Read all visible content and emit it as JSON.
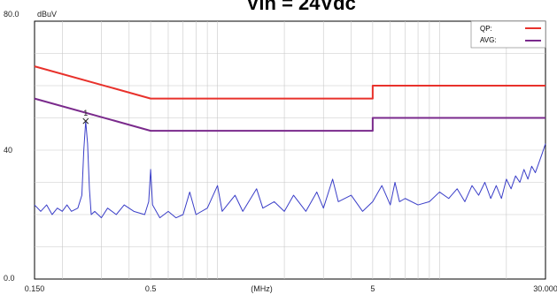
{
  "chart_data": {
    "type": "line",
    "title": "Vin = 24Vdc",
    "xlabel": "(MHz)",
    "ylabel": "dBuV",
    "x_scale": "log",
    "xlim": [
      0.15,
      30
    ],
    "ylim": [
      0,
      80
    ],
    "x_tick_labels": [
      {
        "value": 0.15,
        "label": "0.150"
      },
      {
        "value": 0.5,
        "label": "0.5"
      },
      {
        "value": 5,
        "label": "5"
      },
      {
        "value": 30,
        "label": "30.000"
      }
    ],
    "y_tick_labels": [
      {
        "value": 80,
        "label": "80.0"
      },
      {
        "value": 40,
        "label": "40"
      },
      {
        "value": 0,
        "label": "0.0"
      }
    ],
    "grid": true,
    "legend_position": "top-right",
    "series": [
      {
        "name": "QP:",
        "color": "#e8312b",
        "points": [
          [
            0.15,
            66
          ],
          [
            0.5,
            56
          ],
          [
            5,
            56
          ],
          [
            5,
            60
          ],
          [
            30,
            60
          ]
        ]
      },
      {
        "name": "AVG:",
        "color": "#7a2a8c",
        "points": [
          [
            0.15,
            56
          ],
          [
            0.5,
            46
          ],
          [
            5,
            46
          ],
          [
            5,
            50
          ],
          [
            30,
            50
          ]
        ]
      },
      {
        "color": "#3a3ec8",
        "points": [
          [
            0.15,
            23
          ],
          [
            0.16,
            21
          ],
          [
            0.17,
            23
          ],
          [
            0.18,
            20
          ],
          [
            0.19,
            22
          ],
          [
            0.2,
            21
          ],
          [
            0.21,
            23
          ],
          [
            0.22,
            21
          ],
          [
            0.235,
            22
          ],
          [
            0.245,
            26
          ],
          [
            0.25,
            40
          ],
          [
            0.255,
            49
          ],
          [
            0.26,
            42
          ],
          [
            0.265,
            28
          ],
          [
            0.27,
            20
          ],
          [
            0.28,
            21
          ],
          [
            0.3,
            19
          ],
          [
            0.32,
            22
          ],
          [
            0.35,
            20
          ],
          [
            0.38,
            23
          ],
          [
            0.42,
            21
          ],
          [
            0.47,
            20
          ],
          [
            0.49,
            24
          ],
          [
            0.5,
            34
          ],
          [
            0.51,
            23
          ],
          [
            0.55,
            19
          ],
          [
            0.6,
            21
          ],
          [
            0.65,
            19
          ],
          [
            0.7,
            20
          ],
          [
            0.75,
            27
          ],
          [
            0.8,
            20
          ],
          [
            0.9,
            22
          ],
          [
            1.0,
            29
          ],
          [
            1.05,
            21
          ],
          [
            1.2,
            26
          ],
          [
            1.3,
            21
          ],
          [
            1.5,
            28
          ],
          [
            1.6,
            22
          ],
          [
            1.8,
            24
          ],
          [
            2.0,
            21
          ],
          [
            2.2,
            26
          ],
          [
            2.5,
            21
          ],
          [
            2.8,
            27
          ],
          [
            3.0,
            22
          ],
          [
            3.3,
            31
          ],
          [
            3.5,
            24
          ],
          [
            4.0,
            26
          ],
          [
            4.5,
            21
          ],
          [
            5.0,
            24
          ],
          [
            5.5,
            29
          ],
          [
            6.0,
            23
          ],
          [
            6.3,
            30
          ],
          [
            6.6,
            24
          ],
          [
            7.0,
            25
          ],
          [
            8.0,
            23
          ],
          [
            9.0,
            24
          ],
          [
            10.0,
            27
          ],
          [
            11.0,
            25
          ],
          [
            12.0,
            28
          ],
          [
            13.0,
            24
          ],
          [
            14.0,
            29
          ],
          [
            15.0,
            26
          ],
          [
            16.0,
            30
          ],
          [
            17.0,
            25
          ],
          [
            18.0,
            29
          ],
          [
            19.0,
            25
          ],
          [
            20.0,
            31
          ],
          [
            21.0,
            28
          ],
          [
            22.0,
            32
          ],
          [
            23.0,
            30
          ],
          [
            24.0,
            34
          ],
          [
            25.0,
            31
          ],
          [
            26.0,
            35
          ],
          [
            27.0,
            33
          ],
          [
            28.0,
            36
          ],
          [
            29.0,
            39
          ],
          [
            30.0,
            42
          ]
        ]
      }
    ],
    "annotations": [
      {
        "label": "1",
        "x": 0.255,
        "y": 49
      }
    ]
  }
}
